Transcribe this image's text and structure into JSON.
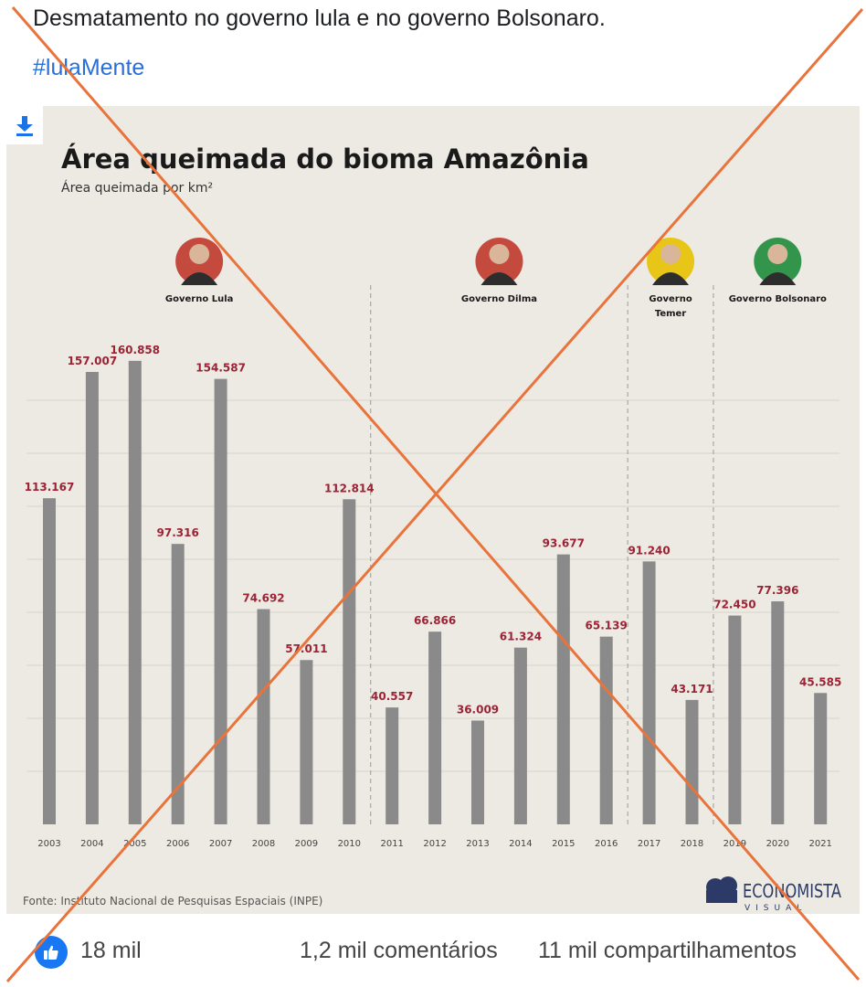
{
  "post": {
    "text": "Desmatamento no governo lula e no governo Bolsonaro.",
    "hashtag": "#lulaMente"
  },
  "image": {
    "download_icon": "download-icon",
    "brand": {
      "name": "ECONOMISTA",
      "sub": "VISUAL"
    }
  },
  "chart_data": {
    "type": "bar",
    "title": "Área queimada do bioma Amazônia",
    "subtitle": "Área queimada por km²",
    "source": "Fonte: Instituto Nacional de Pesquisas Espaciais (INPE)",
    "bar_color": "#8a8a8a",
    "label_color": "#9b2335",
    "categories": [
      "2003",
      "2004",
      "2005",
      "2006",
      "2007",
      "2008",
      "2009",
      "2010",
      "2011",
      "2012",
      "2013",
      "2014",
      "2015",
      "2016",
      "2017",
      "2018",
      "2019",
      "2020",
      "2021"
    ],
    "values": [
      113167,
      157007,
      160858,
      97316,
      154587,
      74692,
      57011,
      112814,
      40557,
      66866,
      36009,
      61324,
      93677,
      65139,
      91240,
      43171,
      72450,
      77396,
      45585
    ],
    "value_labels": [
      "113.167",
      "157.007",
      "160.858",
      "97.316",
      "154.587",
      "74.692",
      "57.011",
      "112.814",
      "40.557",
      "66.866",
      "36.009",
      "61.324",
      "93.677",
      "65.139",
      "91.240",
      "43.171",
      "72.450",
      "77.396",
      "45.585"
    ],
    "ylim": [
      0,
      170000
    ],
    "grid": true,
    "governments": [
      {
        "name": "Governo Lula",
        "first_index": 0,
        "last_index": 7,
        "accent": "#c0392b"
      },
      {
        "name": "Governo Dilma",
        "first_index": 8,
        "last_index": 13,
        "accent": "#c0392b"
      },
      {
        "name": "Governo Temer",
        "first_index": 14,
        "last_index": 15,
        "accent": "#e6c200"
      },
      {
        "name": "Governo Bolsonaro",
        "first_index": 16,
        "last_index": 18,
        "accent": "#1e8c3a"
      }
    ]
  },
  "reactions": {
    "like_icon": "thumbs-up-icon",
    "likes": "18 mil",
    "comments": "1,2 mil comentários",
    "shares": "11 mil compartilhamentos"
  },
  "overlay": {
    "mark": "cross-out-x",
    "color": "#e8743c"
  }
}
